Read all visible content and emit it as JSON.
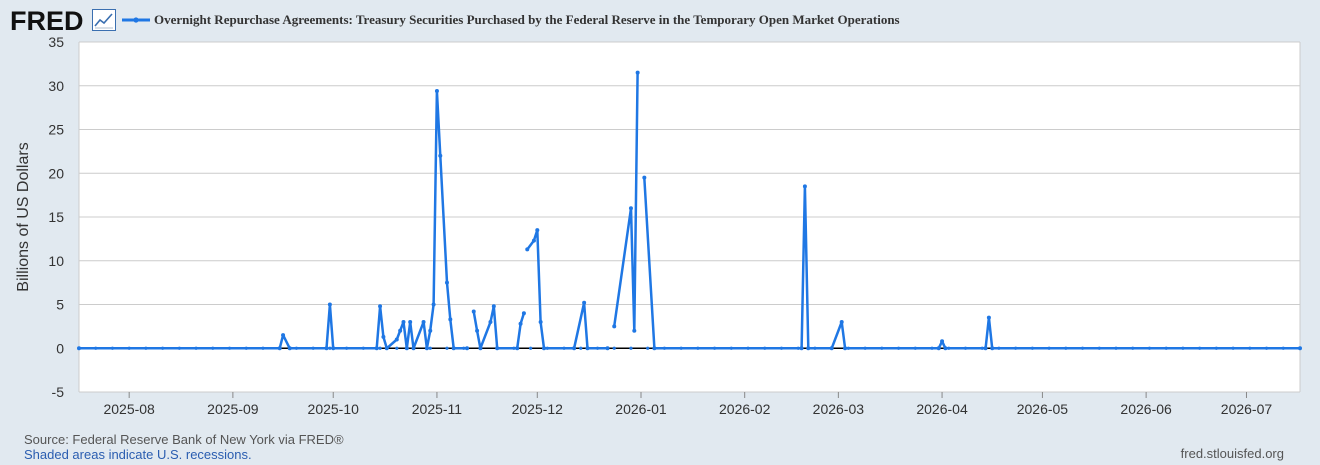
{
  "header": {
    "logo_text": "FRED",
    "title": "Overnight Repurchase Agreements: Treasury Securities Purchased by the Federal Reserve in the Temporary Open Market Operations"
  },
  "footer": {
    "source": "Source: Federal Reserve Bank of New York via FRED®",
    "recessions": "Shaded areas indicate U.S. recessions.",
    "site": "fred.stlouisfed.org"
  },
  "colors": {
    "line": "#1f77e4",
    "plot_bg": "#ffffff",
    "page_bg": "#e1e9f0",
    "grid": "#cccccc",
    "zero_line": "#000000"
  },
  "chart_data": {
    "type": "line",
    "title": "Overnight Repurchase Agreements: Treasury Securities Purchased by the Federal Reserve in the Temporary Open Market Operations",
    "ylabel": "Billions of US Dollars",
    "xlabel": "",
    "ylim": [
      -5,
      35
    ],
    "xlim": [
      "2025-07-17",
      "2026-07-17"
    ],
    "yticks": [
      -5,
      0,
      5,
      10,
      15,
      20,
      25,
      30,
      35
    ],
    "xticks": [
      "2025-08",
      "2025-09",
      "2025-10",
      "2025-11",
      "2025-12",
      "2026-01",
      "2026-02",
      "2026-03",
      "2026-04",
      "2026-05",
      "2026-06",
      "2026-07"
    ],
    "grid": true,
    "legend": "top-left",
    "series": [
      {
        "name": "Overnight Repurchase Agreements: Treasury Securities Purchased by the Federal Reserve in the Temporary Open Market Operations",
        "segments": [
          [
            [
              "2025-07-17",
              0
            ],
            [
              "2025-09-15",
              0
            ],
            [
              "2025-09-16",
              1.5
            ],
            [
              "2025-09-18",
              0
            ],
            [
              "2025-09-29",
              0
            ],
            [
              "2025-09-30",
              5
            ],
            [
              "2025-10-01",
              0
            ],
            [
              "2025-10-14",
              0
            ],
            [
              "2025-10-15",
              4.8
            ],
            [
              "2025-10-16",
              1.3
            ],
            [
              "2025-10-17",
              0
            ],
            [
              "2025-10-20",
              1
            ],
            [
              "2025-10-21",
              2
            ],
            [
              "2025-10-22",
              3
            ],
            [
              "2025-10-23",
              0
            ],
            [
              "2025-10-24",
              3
            ],
            [
              "2025-10-25",
              0
            ],
            [
              "2025-10-28",
              3
            ],
            [
              "2025-10-29",
              0
            ],
            [
              "2025-10-30",
              2
            ],
            [
              "2025-10-31",
              5
            ],
            [
              "2025-11-01",
              29.4
            ],
            [
              "2025-11-02",
              22
            ],
            [
              "2025-11-04",
              7.5
            ],
            [
              "2025-11-05",
              3.3
            ],
            [
              "2025-11-06",
              0
            ],
            [
              "2025-11-10",
              0
            ]
          ],
          [
            [
              "2025-11-12",
              4.2
            ],
            [
              "2025-11-13",
              2
            ],
            [
              "2025-11-14",
              0
            ],
            [
              "2025-11-17",
              3
            ],
            [
              "2025-11-18",
              4.8
            ],
            [
              "2025-11-19",
              0
            ],
            [
              "2025-11-25",
              0
            ],
            [
              "2025-11-26",
              2.8
            ],
            [
              "2025-11-27",
              4
            ]
          ],
          [
            [
              "2025-11-28",
              11.3
            ],
            [
              "2025-11-30",
              12.3
            ],
            [
              "2025-12-01",
              13.5
            ],
            [
              "2025-12-02",
              3
            ],
            [
              "2025-12-03",
              0
            ],
            [
              "2025-12-12",
              0
            ],
            [
              "2025-12-15",
              5.2
            ],
            [
              "2025-12-16",
              0
            ],
            [
              "2025-12-22",
              0
            ]
          ],
          [
            [
              "2025-12-24",
              2.5
            ],
            [
              "2025-12-29",
              16
            ],
            [
              "2025-12-30",
              2
            ],
            [
              "2025-12-31",
              31.5
            ]
          ],
          [
            [
              "2026-01-02",
              19.5
            ],
            [
              "2026-01-05",
              0
            ],
            [
              "2026-02-18",
              0
            ],
            [
              "2026-02-19",
              18.5
            ],
            [
              "2026-02-20",
              0
            ],
            [
              "2026-02-27",
              0
            ],
            [
              "2026-03-02",
              3
            ],
            [
              "2026-03-03",
              0
            ],
            [
              "2026-03-31",
              0
            ],
            [
              "2026-04-01",
              0.8
            ],
            [
              "2026-04-02",
              0
            ],
            [
              "2026-04-14",
              0
            ],
            [
              "2026-04-15",
              3.5
            ],
            [
              "2026-04-16",
              0
            ],
            [
              "2026-07-17",
              0
            ]
          ]
        ]
      }
    ]
  }
}
